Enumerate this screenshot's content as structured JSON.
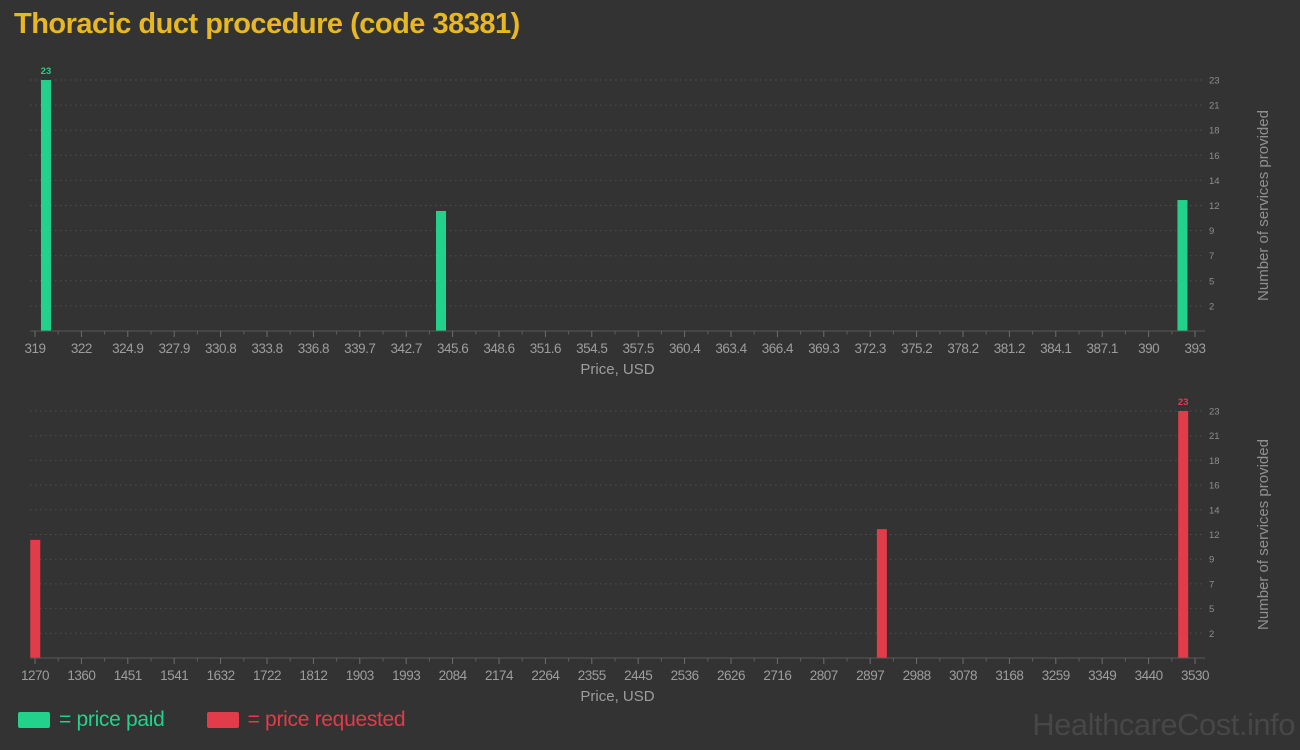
{
  "page": {
    "title": "Thoracic duct procedure (code 38381)",
    "watermark": "HealthcareCost.info",
    "background_color": "#333333",
    "title_color": "#e8b723"
  },
  "legend": {
    "items": [
      {
        "label": "= price paid",
        "color": "#22d28a",
        "series": "paid"
      },
      {
        "label": "= price requested",
        "color": "#e23b4a",
        "series": "requested"
      }
    ]
  },
  "chart_data": [
    {
      "type": "bar",
      "name": "price paid",
      "color": "#22d28a",
      "xlabel": "Price, USD",
      "ylabel": "Number of services provided",
      "ylim": [
        0,
        23
      ],
      "x_range": [
        319,
        393
      ],
      "x_ticks": [
        "319",
        "322",
        "324.9",
        "327.9",
        "330.8",
        "333.8",
        "336.8",
        "339.7",
        "342.7",
        "345.6",
        "348.6",
        "351.6",
        "354.5",
        "357.5",
        "360.4",
        "363.4",
        "366.4",
        "369.3",
        "372.3",
        "375.2",
        "378.2",
        "381.2",
        "384.1",
        "387.1",
        "390",
        "393"
      ],
      "y_ticks": [
        {
          "value": 23,
          "label": "23"
        },
        {
          "value": 20.7,
          "label": "21"
        },
        {
          "value": 18.4,
          "label": "18"
        },
        {
          "value": 16.1,
          "label": "16"
        },
        {
          "value": 13.8,
          "label": "14"
        },
        {
          "value": 11.5,
          "label": "12"
        },
        {
          "value": 9.2,
          "label": "9"
        },
        {
          "value": 6.9,
          "label": "7"
        },
        {
          "value": 4.6,
          "label": "5"
        },
        {
          "value": 2.3,
          "label": "2"
        }
      ],
      "grid": true,
      "legend_position": "bottom",
      "bars": [
        {
          "price": 319.7,
          "count": 23,
          "data_label": "23"
        },
        {
          "price": 344.9,
          "count": 11
        },
        {
          "price": 392.2,
          "count": 12
        }
      ]
    },
    {
      "type": "bar",
      "name": "price requested",
      "color": "#e23b4a",
      "xlabel": "Price, USD",
      "ylabel": "Number of services provided",
      "ylim": [
        0,
        23
      ],
      "x_range": [
        1270,
        3530
      ],
      "x_ticks": [
        "1270",
        "1360",
        "1451",
        "1541",
        "1632",
        "1722",
        "1812",
        "1903",
        "1993",
        "2084",
        "2174",
        "2264",
        "2355",
        "2445",
        "2536",
        "2626",
        "2716",
        "2807",
        "2897",
        "2988",
        "3078",
        "3168",
        "3259",
        "3349",
        "3440",
        "3530"
      ],
      "y_ticks": [
        {
          "value": 23,
          "label": "23"
        },
        {
          "value": 20.7,
          "label": "21"
        },
        {
          "value": 18.4,
          "label": "18"
        },
        {
          "value": 16.1,
          "label": "16"
        },
        {
          "value": 13.8,
          "label": "14"
        },
        {
          "value": 11.5,
          "label": "12"
        },
        {
          "value": 9.2,
          "label": "9"
        },
        {
          "value": 6.9,
          "label": "7"
        },
        {
          "value": 4.6,
          "label": "5"
        },
        {
          "value": 2.3,
          "label": "2"
        }
      ],
      "grid": true,
      "legend_position": "bottom",
      "bars": [
        {
          "price": 1270.5,
          "count": 11
        },
        {
          "price": 2920,
          "count": 12
        },
        {
          "price": 3507,
          "count": 23,
          "data_label": "23"
        }
      ]
    }
  ]
}
